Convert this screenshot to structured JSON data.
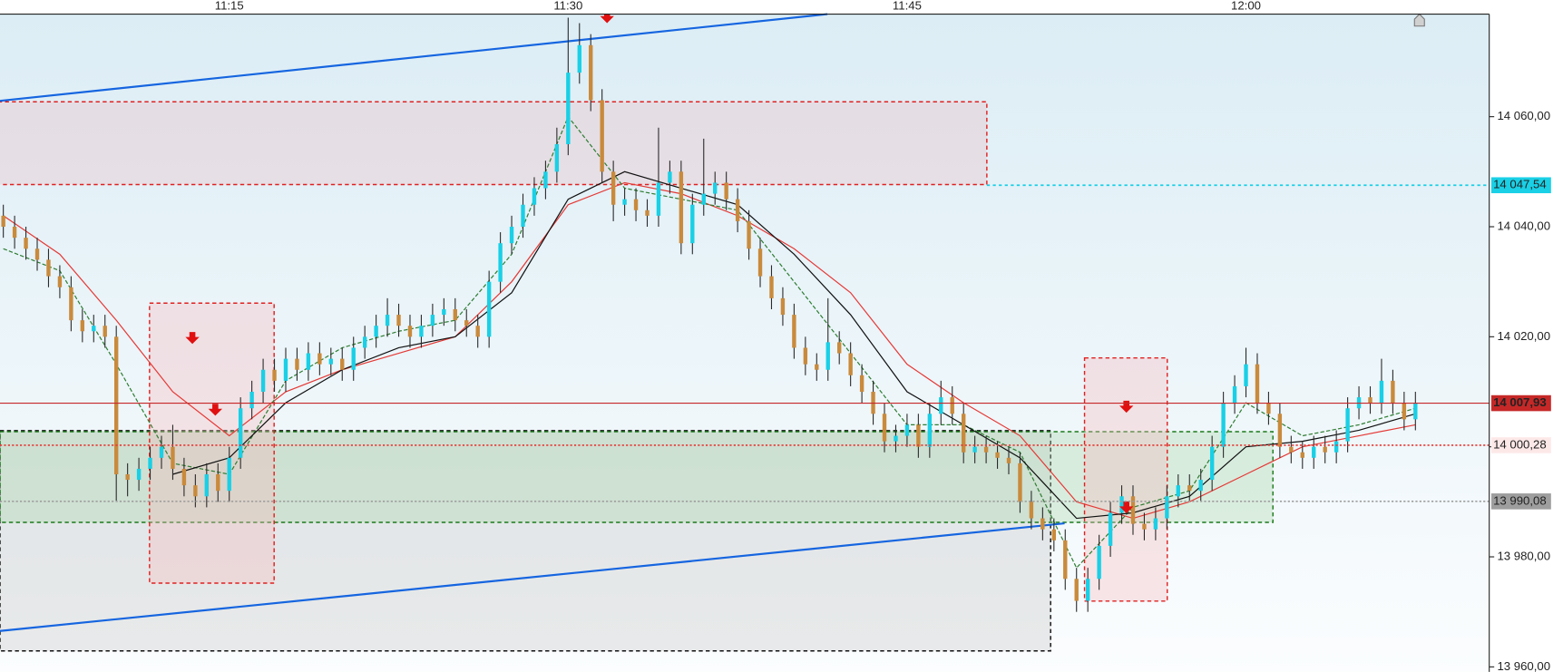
{
  "chart_data": {
    "type": "candlestick",
    "categories": [
      null,
      null,
      null,
      null,
      null,
      null,
      null,
      null,
      null,
      null,
      null,
      null,
      null,
      null,
      null,
      null,
      null,
      null,
      null,
      null,
      "11:15",
      null,
      null,
      null,
      null,
      null,
      null,
      null,
      null,
      null,
      null,
      null,
      null,
      null,
      null,
      null,
      null,
      null,
      null,
      null,
      null,
      null,
      null,
      null,
      null,
      null,
      null,
      null,
      null,
      null,
      "11:30",
      null,
      null,
      null,
      null,
      null,
      null,
      null,
      null,
      null,
      null,
      null,
      null,
      null,
      null,
      null,
      null,
      null,
      null,
      null,
      null,
      null,
      null,
      null,
      null,
      null,
      null,
      null,
      null,
      null,
      "11:45",
      null,
      null,
      null,
      null,
      null,
      null,
      null,
      null,
      null,
      null,
      null,
      null,
      null,
      null,
      null,
      null,
      null,
      null,
      null,
      null,
      null,
      null,
      null,
      null,
      null,
      null,
      null,
      null,
      null,
      "12:00",
      null,
      null,
      null,
      null,
      null,
      null,
      null,
      null,
      null,
      null,
      null,
      null,
      null,
      null,
      null
    ],
    "open": [
      14042,
      14040,
      14038,
      14036,
      14034,
      14031,
      14029,
      14023,
      14021,
      14022,
      14020,
      13995,
      13994,
      13996,
      13998,
      14000,
      13996,
      13993,
      13991,
      13995,
      13992,
      13998,
      14007,
      14010,
      14014,
      14012,
      14016,
      14014,
      14017,
      14015,
      14016,
      14014,
      14018,
      14020,
      14022,
      14024,
      14022,
      14020,
      14022,
      14024,
      14025,
      14023,
      14022,
      14020,
      14030,
      14037,
      14040,
      14044,
      14047,
      14050,
      14055,
      14068,
      14073,
      14063,
      14050,
      14044,
      14045,
      14043,
      14042,
      14048,
      14050,
      14037,
      14044,
      14046,
      14048,
      14045,
      14041,
      14036,
      14031,
      14027,
      14024,
      14018,
      14015,
      14014,
      14019,
      14017,
      14013,
      14010,
      14006,
      14001,
      14002,
      14004,
      14000,
      14006,
      14009,
      14006,
      13999,
      14000,
      13999,
      13998,
      13997,
      13990,
      13987,
      13985,
      13983,
      13976,
      13972,
      13976,
      13982,
      13988,
      13991,
      13986,
      13985,
      13987,
      13991,
      13993,
      13992,
      13994,
      14000,
      14008,
      14011,
      14015,
      14008,
      14006,
      14000,
      13999,
      13998,
      14000,
      13999,
      14001,
      14007,
      14009,
      14008,
      14012,
      14008,
      14005
    ],
    "high": [
      14044,
      14042,
      14040,
      14038,
      14036,
      14033,
      14031,
      14025,
      14024,
      14024,
      14022,
      13997,
      13998,
      14000,
      14002,
      14004,
      13998,
      13995,
      13997,
      13997,
      14000,
      14009,
      14012,
      14016,
      14016,
      14018,
      14018,
      14019,
      14019,
      14018,
      14018,
      14020,
      14022,
      14024,
      14027,
      14026,
      14024,
      14024,
      14026,
      14027,
      14027,
      14025,
      14024,
      14032,
      14039,
      14042,
      14046,
      14049,
      14052,
      14058,
      14078,
      14077,
      14075,
      14065,
      14052,
      14047,
      14047,
      14045,
      14058,
      14052,
      14052,
      14046,
      14056,
      14050,
      14050,
      14047,
      14043,
      14038,
      14033,
      14029,
      14026,
      14020,
      14017,
      14027,
      14021,
      14019,
      14015,
      14012,
      14008,
      14004,
      14006,
      14006,
      14008,
      14012,
      14011,
      14008,
      14002,
      14002,
      14001,
      14000,
      13999,
      13992,
      13989,
      13987,
      13985,
      13978,
      13978,
      13984,
      13990,
      13993,
      13993,
      13988,
      13989,
      13993,
      13995,
      13995,
      13996,
      14002,
      14010,
      14013,
      14018,
      14017,
      14010,
      14008,
      14002,
      14001,
      14002,
      14002,
      14003,
      14009,
      14011,
      14011,
      14016,
      14014,
      14010,
      14010
    ],
    "low": [
      14038,
      14036,
      14034,
      14032,
      14029,
      14027,
      14021,
      14019,
      14019,
      14018,
      13990,
      13991,
      13992,
      13994,
      13996,
      13994,
      13991,
      13989,
      13989,
      13990,
      13990,
      13996,
      14005,
      14008,
      14010,
      14010,
      14012,
      14012,
      14013,
      14013,
      14012,
      14012,
      14016,
      14018,
      14020,
      14020,
      14018,
      14018,
      14020,
      14022,
      14021,
      14020,
      14018,
      14018,
      14028,
      14035,
      14038,
      14042,
      14045,
      14048,
      14053,
      14066,
      14061,
      14048,
      14041,
      14042,
      14041,
      14040,
      14040,
      14046,
      14035,
      14035,
      14042,
      14044,
      14043,
      14039,
      14034,
      14029,
      14025,
      14022,
      14016,
      14013,
      14012,
      14012,
      14015,
      14011,
      14008,
      14004,
      13999,
      13999,
      14000,
      13998,
      13998,
      14004,
      14004,
      13997,
      13997,
      13997,
      13996,
      13995,
      13988,
      13985,
      13983,
      13981,
      13974,
      13970,
      13970,
      13974,
      13980,
      13986,
      13984,
      13983,
      13983,
      13985,
      13989,
      13990,
      13990,
      13992,
      13998,
      14006,
      14009,
      14006,
      14004,
      13998,
      13997,
      13996,
      13996,
      13997,
      13997,
      13999,
      14005,
      14006,
      14006,
      14006,
      14003,
      14003
    ],
    "close": [
      14040,
      14038,
      14036,
      14034,
      14031,
      14029,
      14023,
      14021,
      14022,
      14020,
      13995,
      13994,
      13996,
      13998,
      14000,
      13996,
      13993,
      13991,
      13995,
      13992,
      13998,
      14007,
      14010,
      14014,
      14012,
      14016,
      14014,
      14017,
      14015,
      14016,
      14014,
      14018,
      14020,
      14022,
      14024,
      14022,
      14020,
      14022,
      14024,
      14025,
      14023,
      14022,
      14020,
      14030,
      14037,
      14040,
      14044,
      14047,
      14050,
      14055,
      14068,
      14073,
      14063,
      14050,
      14044,
      14045,
      14043,
      14042,
      14048,
      14050,
      14037,
      14044,
      14046,
      14048,
      14045,
      14041,
      14036,
      14031,
      14027,
      14024,
      14018,
      14015,
      14014,
      14019,
      14017,
      14013,
      14010,
      14006,
      14001,
      14002,
      14004,
      14000,
      14006,
      14009,
      14006,
      13999,
      14000,
      13999,
      13998,
      13997,
      13990,
      13987,
      13985,
      13983,
      13976,
      13972,
      13976,
      13982,
      13988,
      13991,
      13986,
      13985,
      13987,
      13991,
      13993,
      13992,
      13994,
      14000,
      14008,
      14011,
      14015,
      14008,
      14006,
      14000,
      13999,
      13998,
      14000,
      13999,
      14001,
      14007,
      14009,
      14008,
      14012,
      14008,
      14005,
      14007.93
    ],
    "up_color": "#19d0e6",
    "down_color": "#c98a3c",
    "wick_color": "#2a2a2a",
    "overlays": [
      {
        "color": "#e53935",
        "x": [
          0,
          5,
          10,
          15,
          20,
          25,
          30,
          35,
          40,
          45,
          50,
          55,
          60,
          65,
          70,
          75,
          80,
          85,
          90,
          95,
          100,
          105,
          110,
          115,
          120,
          125
        ],
        "values": [
          14042,
          14035,
          14023,
          14010,
          14002,
          14010,
          14014,
          14017,
          14020,
          14030,
          14044,
          14048,
          14046,
          14042,
          14036,
          14028,
          14015,
          14008,
          14002,
          13990,
          13987,
          13990,
          13995,
          14000,
          14002,
          14004
        ]
      },
      {
        "color": "#2e7d32",
        "dash": true,
        "x": [
          0,
          5,
          10,
          15,
          20,
          25,
          30,
          35,
          40,
          45,
          50,
          55,
          60,
          65,
          70,
          75,
          80,
          85,
          90,
          95,
          100,
          105,
          110,
          115,
          120,
          125
        ],
        "values": [
          14036,
          14032,
          14015,
          13997,
          13995,
          14012,
          14018,
          14021,
          14023,
          14035,
          14060,
          14047,
          14045,
          14043,
          14030,
          14017,
          14004,
          14004,
          13999,
          13978,
          13989,
          13992,
          14008,
          14002,
          14004,
          14007
        ]
      },
      {
        "color": "#111111",
        "x": [
          0,
          5,
          10,
          15,
          20,
          25,
          30,
          35,
          40,
          45,
          50,
          55,
          60,
          65,
          70,
          75,
          80,
          85,
          90,
          95,
          100,
          105,
          110,
          115,
          120,
          125
        ],
        "values": [
          null,
          null,
          null,
          13995,
          13998,
          14008,
          14014,
          14018,
          14020,
          14028,
          14045,
          14050,
          14047,
          14044,
          14035,
          14024,
          14010,
          14004,
          13998,
          13987,
          13988,
          13991,
          14000,
          14001,
          14003,
          14006
        ]
      }
    ],
    "price_lines": [
      {
        "value": 14047.54,
        "label": "14 047,54",
        "color": "#19d0e6",
        "text_color": "#111111",
        "style": "dashed"
      },
      {
        "value": 14007.93,
        "label": "14 007,93",
        "color": "#c62828",
        "text_color": "#ffffff",
        "style": "solid"
      },
      {
        "value": 14000.28,
        "label": "14 000,28",
        "color": "#e53935",
        "text_color": "#e53935",
        "style": "dotted"
      },
      {
        "value": 13990.08,
        "label": "13 990,08",
        "color": "#9e9e9e",
        "text_color": "#111111",
        "style": "dotted"
      }
    ],
    "ylim": [
      13959.1,
      14078.64
    ],
    "yticks": [
      {
        "value": 13960,
        "label": "13 960,00"
      },
      {
        "value": 13980,
        "label": "13 980,00"
      },
      {
        "value": 14000,
        "label": "14 000,00"
      },
      {
        "value": 14020,
        "label": "14 020,00"
      },
      {
        "value": 14040,
        "label": "14 040,00"
      },
      {
        "value": 14060,
        "label": "14 060,00"
      }
    ]
  }
}
